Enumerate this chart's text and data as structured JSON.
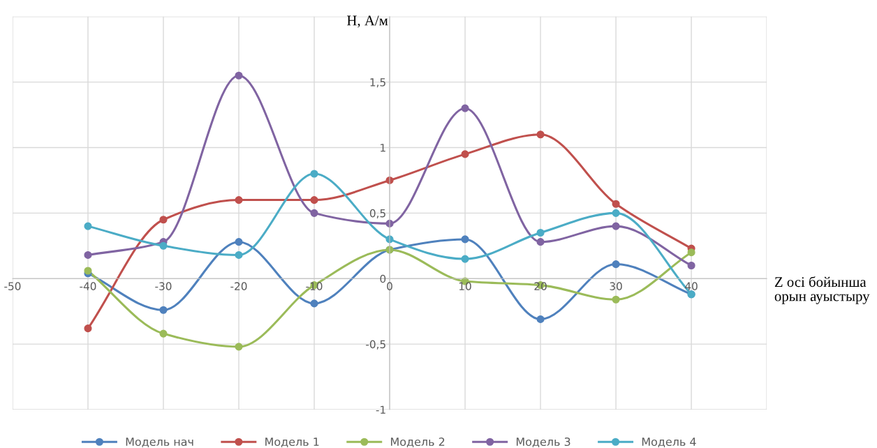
{
  "chart_data": {
    "type": "line",
    "xlabel": "Z осі бойынша\nорын ауыстыру",
    "ylabel": "H, А/м",
    "x": [
      -40,
      -30,
      -20,
      -10,
      0,
      10,
      20,
      30,
      40
    ],
    "series": [
      {
        "name": "Модель нач",
        "color": "#4f81bd",
        "values": [
          0.04,
          -0.24,
          0.28,
          -0.19,
          0.22,
          0.3,
          -0.31,
          0.11,
          -0.12
        ]
      },
      {
        "name": "Модель 1",
        "color": "#c0504d",
        "values": [
          -0.38,
          0.45,
          0.6,
          0.6,
          0.75,
          0.95,
          1.1,
          0.57,
          0.23
        ]
      },
      {
        "name": "Модель 2",
        "color": "#9bbb59",
        "values": [
          0.06,
          -0.42,
          -0.52,
          -0.05,
          0.22,
          -0.02,
          -0.05,
          -0.16,
          0.2
        ]
      },
      {
        "name": "Модель 3",
        "color": "#8064a2",
        "values": [
          0.18,
          0.28,
          1.55,
          0.5,
          0.42,
          1.3,
          0.28,
          0.4,
          0.1
        ]
      },
      {
        "name": "Модель 4",
        "color": "#4bacc6",
        "values": [
          0.4,
          0.25,
          0.18,
          0.8,
          0.3,
          0.15,
          0.35,
          0.5,
          -0.12
        ]
      }
    ],
    "xlim": [
      -50,
      50
    ],
    "xticks": [
      -50,
      -40,
      -30,
      -20,
      -10,
      0,
      10,
      20,
      30,
      40,
      {
        "value": 50,
        "label": null
      }
    ],
    "ylim": [
      -1,
      2
    ],
    "yticks": [
      -1,
      {
        "value": -0.5,
        "label": "-0,5"
      },
      0,
      {
        "value": 0.5,
        "label": "0,5"
      },
      1,
      {
        "value": 1.5,
        "label": "1,5"
      },
      {
        "value": 2,
        "label": null
      }
    ],
    "grid": true,
    "legend": "bottom",
    "marker": "circle",
    "line_style": "solid"
  }
}
